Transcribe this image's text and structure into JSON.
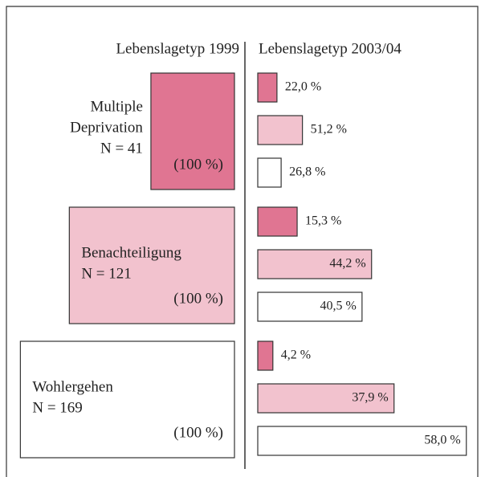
{
  "chart_data": {
    "type": "transition",
    "left_title": "Lebenslagetyp 1999",
    "right_title": "Lebenslagetyp 2003/04",
    "groups": [
      {
        "name": [
          "Multiple",
          "Deprivation"
        ],
        "n": 41,
        "n_label": "N = 41",
        "total_label": "(100 %)",
        "color": "#e07592",
        "values": [
          22.0,
          51.2,
          26.8
        ],
        "value_labels": [
          "22,0 %",
          "51,2 %",
          "26,8 %"
        ]
      },
      {
        "name": [
          "Benachteiligung"
        ],
        "n": 121,
        "n_label": "N = 121",
        "total_label": "(100 %)",
        "color": "#f2c2ce",
        "values": [
          15.3,
          44.2,
          40.5
        ],
        "value_labels": [
          "15,3 %",
          "44,2 %",
          "40,5 %"
        ]
      },
      {
        "name": [
          "Wohlergehen"
        ],
        "n": 169,
        "n_label": "N = 169",
        "total_label": "(100 %)",
        "color": "#ffffff",
        "values": [
          4.2,
          37.9,
          58.0
        ],
        "value_labels": [
          "4,2 %",
          "37,9 %",
          "58,0 %"
        ]
      }
    ],
    "bar_colors": [
      "#e07592",
      "#f2c2ce",
      "#ffffff"
    ]
  }
}
